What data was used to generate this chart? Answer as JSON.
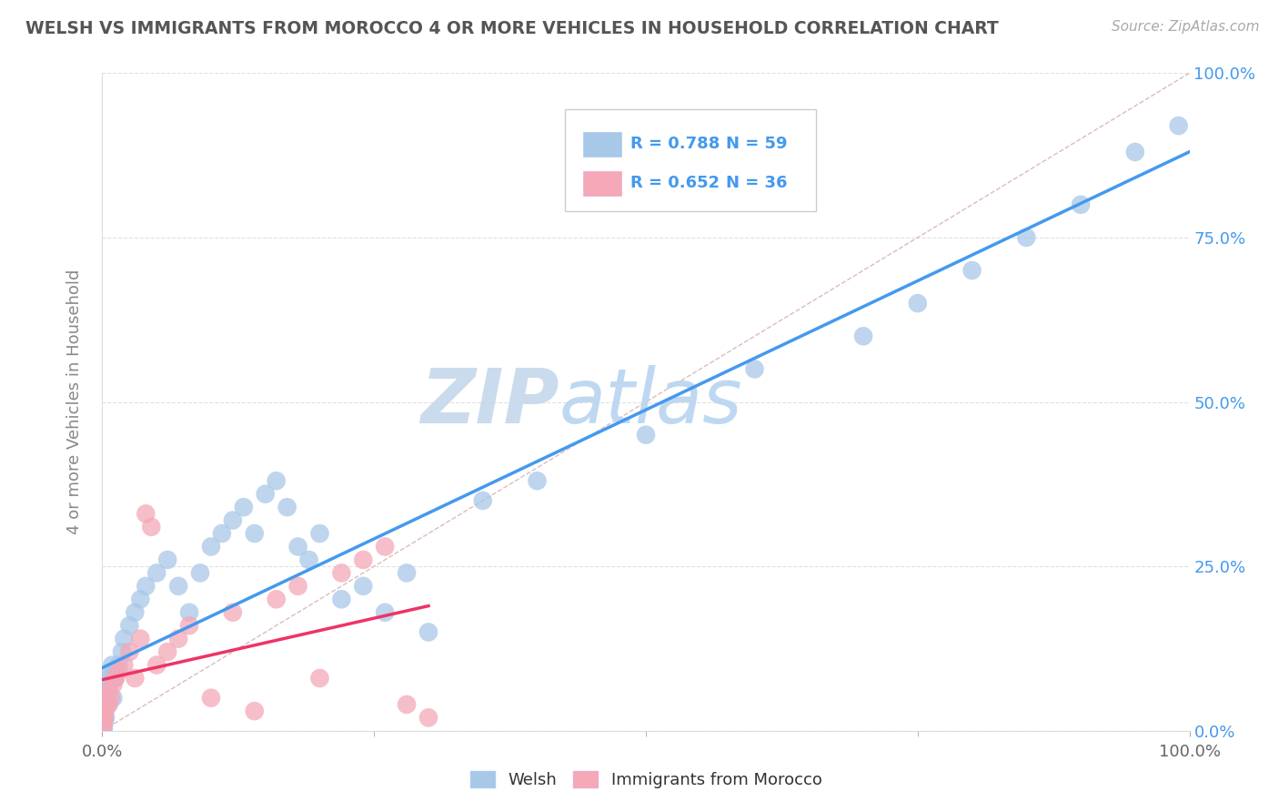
{
  "title": "WELSH VS IMMIGRANTS FROM MOROCCO 4 OR MORE VEHICLES IN HOUSEHOLD CORRELATION CHART",
  "source": "Source: ZipAtlas.com",
  "ylabel": "4 or more Vehicles in Household",
  "legend1_label": "Welsh",
  "legend2_label": "Immigrants from Morocco",
  "R1": 0.788,
  "N1": 59,
  "R2": 0.652,
  "N2": 36,
  "welsh_color": "#a8c8e8",
  "morocco_color": "#f4a8b8",
  "line1_color": "#4499ee",
  "line2_color": "#ee3366",
  "ref_line_color": "#ddbbbb",
  "watermark_zip": "ZIP",
  "watermark_atlas": "atlas",
  "watermark_color_zip": "#c5d8ec",
  "watermark_color_atlas": "#b8d4f0",
  "background_color": "#ffffff",
  "grid_color": "#e0e0e0",
  "title_color": "#555555",
  "right_axis_color": "#4499ee",
  "welsh_x": [
    0.05,
    0.1,
    0.1,
    0.15,
    0.15,
    0.2,
    0.2,
    0.25,
    0.3,
    0.3,
    0.35,
    0.4,
    0.5,
    0.5,
    0.6,
    0.7,
    0.8,
    0.9,
    1.0,
    1.2,
    1.5,
    1.8,
    2.0,
    2.5,
    3.0,
    3.5,
    4.0,
    5.0,
    6.0,
    7.0,
    8.0,
    9.0,
    10.0,
    11.0,
    12.0,
    13.0,
    14.0,
    15.0,
    16.0,
    17.0,
    18.0,
    19.0,
    20.0,
    22.0,
    24.0,
    26.0,
    28.0,
    30.0,
    35.0,
    40.0,
    50.0,
    60.0,
    70.0,
    75.0,
    80.0,
    85.0,
    90.0,
    95.0,
    99.0
  ],
  "welsh_y": [
    0.2,
    0.3,
    0.5,
    1.0,
    1.5,
    2.0,
    2.5,
    3.0,
    2.0,
    3.5,
    4.0,
    5.0,
    4.0,
    6.0,
    7.0,
    8.0,
    9.0,
    10.0,
    5.0,
    8.0,
    10.0,
    12.0,
    14.0,
    16.0,
    18.0,
    20.0,
    22.0,
    24.0,
    26.0,
    22.0,
    18.0,
    24.0,
    28.0,
    30.0,
    32.0,
    34.0,
    30.0,
    36.0,
    38.0,
    34.0,
    28.0,
    26.0,
    30.0,
    20.0,
    22.0,
    18.0,
    24.0,
    15.0,
    35.0,
    38.0,
    45.0,
    55.0,
    60.0,
    65.0,
    70.0,
    75.0,
    80.0,
    88.0,
    92.0
  ],
  "morocco_x": [
    0.05,
    0.1,
    0.1,
    0.15,
    0.2,
    0.2,
    0.25,
    0.3,
    0.4,
    0.5,
    0.6,
    0.8,
    1.0,
    1.2,
    1.5,
    2.0,
    2.5,
    3.0,
    3.5,
    4.0,
    4.5,
    5.0,
    6.0,
    7.0,
    8.0,
    10.0,
    12.0,
    14.0,
    16.0,
    18.0,
    20.0,
    22.0,
    24.0,
    26.0,
    28.0,
    30.0
  ],
  "morocco_y": [
    0.5,
    1.0,
    1.5,
    2.0,
    2.5,
    3.0,
    3.5,
    4.0,
    5.0,
    6.0,
    4.0,
    5.0,
    7.0,
    8.0,
    9.0,
    10.0,
    12.0,
    8.0,
    14.0,
    33.0,
    31.0,
    10.0,
    12.0,
    14.0,
    16.0,
    5.0,
    18.0,
    3.0,
    20.0,
    22.0,
    8.0,
    24.0,
    26.0,
    28.0,
    4.0,
    2.0
  ],
  "xtick_vals": [
    0,
    100
  ],
  "xtick_labels": [
    "0.0%",
    "100.0%"
  ],
  "ytick_vals": [
    0,
    25,
    50,
    75,
    100
  ],
  "ytick_labels": [
    "0.0%",
    "25.0%",
    "50.0%",
    "75.0%",
    "100.0%"
  ]
}
